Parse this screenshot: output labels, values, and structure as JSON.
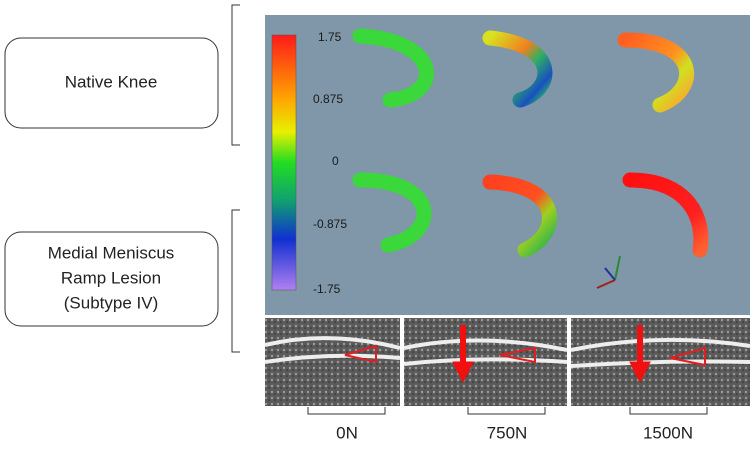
{
  "rows": [
    {
      "label": [
        "Native Knee"
      ]
    },
    {
      "label": [
        "Medial Meniscus",
        "Ramp Lesion",
        "(Subtype IV)"
      ]
    }
  ],
  "colorbar": {
    "ticks": [
      "1.75",
      "0.875",
      "0",
      "-0.875",
      "-1.75"
    ]
  },
  "columns": [
    "0N",
    "750N",
    "1500N"
  ]
}
